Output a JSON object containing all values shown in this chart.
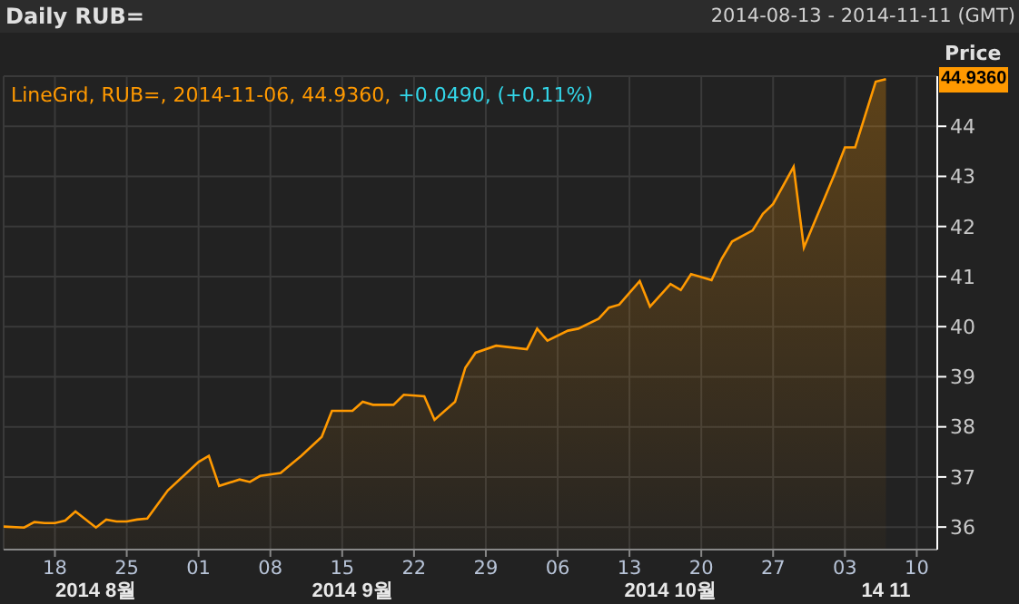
{
  "chart_data": {
    "type": "area",
    "title": "Daily RUB=",
    "subtitle": "2014-08-13 - 2014-11-11 (GMT)",
    "ylabel": "Price",
    "annotations": [
      "LineGrd, RUB=, 2014-11-06, 44.9360,",
      "+0.0490, (+0.11%)",
      "44.9360"
    ],
    "x": [
      "2014-08-13",
      "2014-08-15",
      "2014-08-16",
      "2014-08-17",
      "2014-08-18",
      "2014-08-19",
      "2014-08-20",
      "2014-08-22",
      "2014-08-23",
      "2014-08-24",
      "2014-08-25",
      "2014-08-26",
      "2014-08-27",
      "2014-08-29",
      "2014-09-01",
      "2014-09-02",
      "2014-09-03",
      "2014-09-05",
      "2014-09-06",
      "2014-09-07",
      "2014-09-09",
      "2014-09-11",
      "2014-09-13",
      "2014-09-14",
      "2014-09-16",
      "2014-09-17",
      "2014-09-18",
      "2014-09-20",
      "2014-09-21",
      "2014-09-23",
      "2014-09-24",
      "2014-09-26",
      "2014-09-27",
      "2014-09-28",
      "2014-09-30",
      "2014-10-03",
      "2014-10-04",
      "2014-10-05",
      "2014-10-07",
      "2014-10-08",
      "2014-10-10",
      "2014-10-11",
      "2014-10-12",
      "2014-10-14",
      "2014-10-15",
      "2014-10-17",
      "2014-10-18",
      "2014-10-19",
      "2014-10-21",
      "2014-10-22",
      "2014-10-23",
      "2014-10-25",
      "2014-10-26",
      "2014-10-27",
      "2014-10-29",
      "2014-10-30",
      "2014-11-02",
      "2014-11-03",
      "2014-11-04",
      "2014-11-06",
      "2014-11-07"
    ],
    "values": [
      36.01,
      35.99,
      36.1,
      36.08,
      36.08,
      36.13,
      36.31,
      35.99,
      36.15,
      36.11,
      36.11,
      36.15,
      36.17,
      36.73,
      37.3,
      37.42,
      36.82,
      36.95,
      36.9,
      37.02,
      37.08,
      37.42,
      37.8,
      38.32,
      38.32,
      38.5,
      38.44,
      38.44,
      38.64,
      38.61,
      38.14,
      38.5,
      39.18,
      39.48,
      39.62,
      39.55,
      39.96,
      39.72,
      39.92,
      39.96,
      40.16,
      40.38,
      40.44,
      40.91,
      40.4,
      40.85,
      40.73,
      41.05,
      40.93,
      41.36,
      41.7,
      41.92,
      42.25,
      42.45,
      43.19,
      41.58,
      43.05,
      43.58,
      43.58,
      44.89,
      44.94
    ],
    "color": "#ff9900",
    "xlim": [
      "2014-08-13",
      "2014-11-12"
    ],
    "xticks": [
      {
        "value": "2014-08-18",
        "label": "18"
      },
      {
        "value": "2014-08-25",
        "label": "25"
      },
      {
        "value": "2014-09-01",
        "label": "01"
      },
      {
        "value": "2014-09-08",
        "label": "08"
      },
      {
        "value": "2014-09-15",
        "label": "15"
      },
      {
        "value": "2014-09-22",
        "label": "22"
      },
      {
        "value": "2014-09-29",
        "label": "29"
      },
      {
        "value": "2014-10-06",
        "label": "06"
      },
      {
        "value": "2014-10-13",
        "label": "13"
      },
      {
        "value": "2014-10-20",
        "label": "20"
      },
      {
        "value": "2014-10-27",
        "label": "27"
      },
      {
        "value": "2014-11-03",
        "label": "03"
      },
      {
        "value": "2014-11-10",
        "label": "10"
      }
    ],
    "x2lim": [
      "2014-08-13",
      "2014-11-12"
    ],
    "x2ticks": [
      {
        "value": "2014-08-22",
        "label": "2014 8월"
      },
      {
        "value": "2014-09-16",
        "label": "2014 9월"
      },
      {
        "value": "2014-10-17",
        "label": "2014 10월"
      },
      {
        "value": "2014-11-07",
        "label": "14 11"
      }
    ],
    "ylim": [
      35.55,
      45.0
    ],
    "yticks": [
      36,
      37,
      38,
      39,
      40,
      41,
      42,
      43,
      44
    ],
    "grid": true
  }
}
